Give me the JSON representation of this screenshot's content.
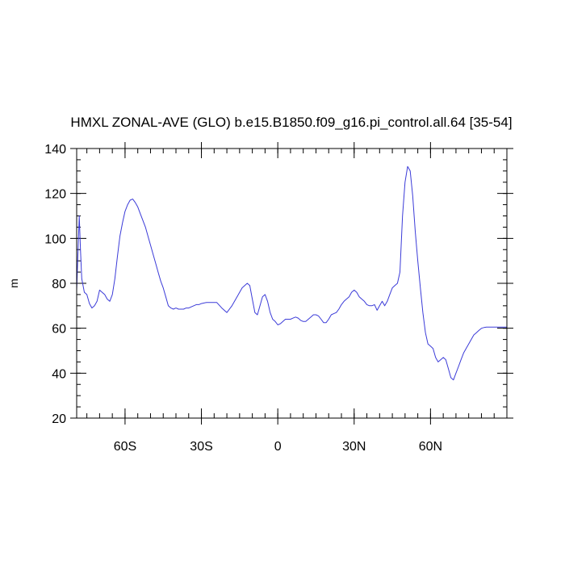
{
  "chart_data": {
    "type": "line",
    "title": "HMXL ZONAL-AVE (GLO) b.e15.B1850.f09_g16.pi_control.all.64 [35-54]",
    "xlabel": "",
    "ylabel": "m",
    "xlim": [
      -79,
      90
    ],
    "ylim": [
      20,
      140
    ],
    "x_ticks": [
      {
        "value": -60,
        "label": "60S"
      },
      {
        "value": -30,
        "label": "30S"
      },
      {
        "value": 0,
        "label": "0"
      },
      {
        "value": 30,
        "label": "30N"
      },
      {
        "value": 60,
        "label": "60N"
      }
    ],
    "y_ticks": [
      20,
      40,
      60,
      80,
      100,
      120,
      140
    ],
    "grid": false,
    "line_color": "#3b3bd8",
    "series": [
      {
        "x": [
          -79,
          -78,
          -77.5,
          -77,
          -76,
          -75,
          -74,
          -73,
          -72,
          -71,
          -70,
          -69,
          -68,
          -67,
          -66,
          -65,
          -64,
          -63,
          -62,
          -61,
          -60,
          -59,
          -58,
          -57,
          -56,
          -55,
          -54,
          -53,
          -52,
          -51,
          -50,
          -49,
          -48,
          -47,
          -46,
          -45,
          -44,
          -43,
          -42,
          -41,
          -40,
          -39,
          -38,
          -37,
          -36,
          -35,
          -34,
          -33,
          -32,
          -31,
          -30,
          -28,
          -26,
          -24,
          -22,
          -20,
          -18,
          -16,
          -14,
          -12,
          -11,
          -10,
          -9,
          -8,
          -7,
          -6,
          -5,
          -4,
          -3,
          -2,
          -1,
          0,
          1,
          2,
          3,
          4,
          5,
          6,
          7,
          8,
          9,
          10,
          11,
          12,
          13,
          14,
          15,
          16,
          17,
          18,
          19,
          20,
          21,
          22,
          23,
          24,
          25,
          26,
          27,
          28,
          29,
          30,
          31,
          32,
          33,
          34,
          35,
          36,
          37,
          38,
          39,
          40,
          41,
          42,
          43,
          44,
          45,
          46,
          47,
          48,
          49,
          50,
          51,
          52,
          53,
          54,
          55,
          56,
          57,
          58,
          59,
          60,
          61,
          62,
          63,
          64,
          65,
          66,
          67,
          68,
          69,
          70,
          71,
          72,
          73,
          74,
          75,
          76,
          77,
          78,
          79,
          80,
          81,
          82,
          83,
          84,
          85,
          86,
          87,
          88,
          89,
          90
        ],
        "y": [
          77,
          110,
          95,
          82,
          76,
          75,
          71,
          69,
          70,
          72,
          77,
          76,
          75,
          73,
          72,
          75,
          82,
          92,
          101,
          107,
          112,
          115,
          117,
          117.5,
          116,
          114,
          111,
          108,
          105,
          101,
          97,
          93,
          89,
          85,
          81,
          78,
          74,
          70,
          69,
          68.5,
          69,
          68.5,
          68.5,
          68.5,
          69,
          69,
          69.5,
          70,
          70.5,
          70.5,
          71,
          71.5,
          71.5,
          71.5,
          69,
          67,
          70,
          74,
          78,
          80,
          79,
          73,
          67,
          66,
          70,
          74,
          75,
          72,
          67,
          64,
          63,
          61.5,
          62,
          63,
          64,
          64,
          64,
          64.5,
          65,
          64.5,
          63.5,
          63,
          63,
          64,
          65,
          66,
          66,
          65.5,
          64,
          62.5,
          62.5,
          64,
          66,
          66.5,
          67,
          68.5,
          70.5,
          72,
          73,
          74,
          76,
          77,
          76,
          74,
          73,
          72,
          70.5,
          70,
          70,
          70.5,
          68,
          70,
          72,
          70,
          72,
          75,
          78,
          79,
          80,
          85,
          110,
          125,
          132,
          130,
          119,
          103,
          90,
          78,
          67,
          58,
          53,
          52,
          51,
          47,
          45,
          46,
          47,
          46,
          42,
          38,
          37,
          40,
          43,
          46,
          49,
          51,
          53,
          55,
          57,
          58,
          59,
          60,
          60.3,
          60.5,
          60.5,
          60.5,
          60.5,
          60.5,
          60.5,
          60.5,
          60.5,
          60.5
        ]
      }
    ]
  }
}
